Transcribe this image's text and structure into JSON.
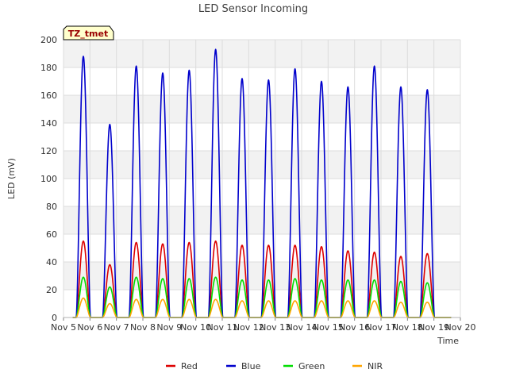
{
  "chart_data": {
    "type": "line",
    "title": "LED Sensor Incoming",
    "xlabel": "Time",
    "ylabel": "LED (mV)",
    "ylim": [
      0,
      200
    ],
    "yticks": [
      0,
      20,
      40,
      60,
      80,
      100,
      120,
      140,
      160,
      180,
      200
    ],
    "xlim": [
      5,
      20
    ],
    "xticks": [
      5,
      6,
      7,
      8,
      9,
      10,
      11,
      12,
      13,
      14,
      15,
      16,
      17,
      18,
      19,
      20
    ],
    "xtick_labels": [
      "Nov 5",
      "Nov 6",
      "Nov 7",
      "Nov 8",
      "Nov 9",
      "Nov 10",
      "Nov 11",
      "Nov 12",
      "Nov 13",
      "Nov 14",
      "Nov 15",
      "Nov 16",
      "Nov 17",
      "Nov 18",
      "Nov 19",
      "Nov 20"
    ],
    "grid": true,
    "legend_position": "bottom-center",
    "annotation": "TZ_tmet",
    "day_peak_x": [
      5.75,
      6.75,
      7.75,
      8.75,
      9.75,
      10.75,
      11.75,
      12.75,
      13.75,
      14.75,
      15.75,
      16.75,
      17.75,
      18.75
    ],
    "series": [
      {
        "name": "Red",
        "color": "#dd0000",
        "peaks": [
          55,
          38,
          54,
          53,
          54,
          55,
          52,
          52,
          52,
          51,
          48,
          47,
          44,
          46
        ]
      },
      {
        "name": "Blue",
        "color": "#0000cc",
        "peaks": [
          188,
          139,
          181,
          176,
          178,
          193,
          172,
          171,
          179,
          170,
          166,
          181,
          166,
          164
        ]
      },
      {
        "name": "Green",
        "color": "#00dd00",
        "peaks": [
          29,
          22,
          29,
          28,
          28,
          29,
          27,
          27,
          28,
          27,
          27,
          27,
          26,
          25
        ]
      },
      {
        "name": "NIR",
        "color": "#ffa500",
        "peaks": [
          14,
          10,
          13,
          13,
          13,
          13,
          12,
          12,
          12,
          12,
          12,
          12,
          11,
          11
        ]
      }
    ]
  }
}
